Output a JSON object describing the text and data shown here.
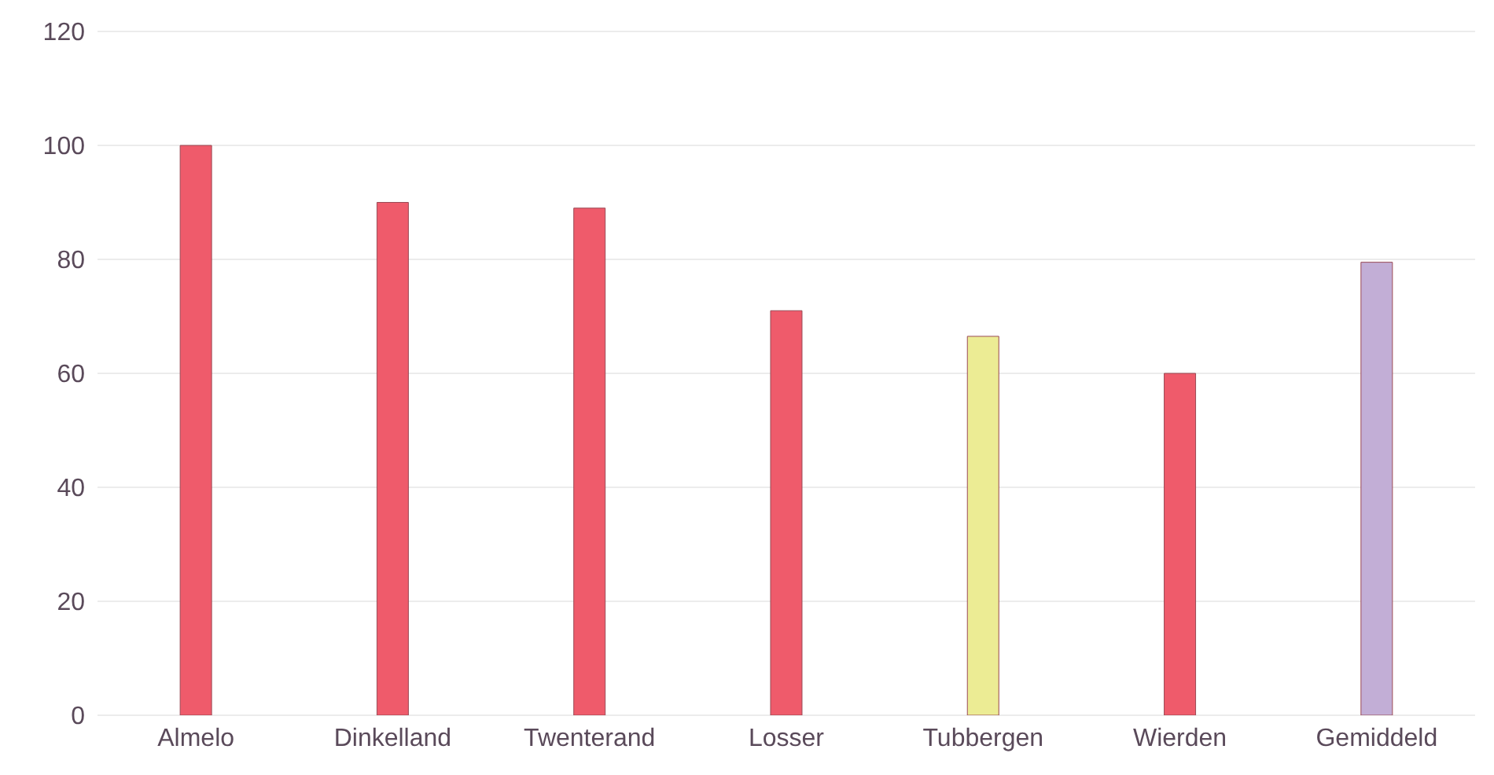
{
  "chart_data": {
    "type": "bar",
    "categories": [
      "Almelo",
      "Dinkelland",
      "Twenterand",
      "Losser",
      "Tubbergen",
      "Wierden",
      "Gemiddeld"
    ],
    "values": [
      100,
      90,
      89,
      71,
      66.5,
      60,
      79.5
    ],
    "colors": [
      "#ef5b6b",
      "#ef5b6b",
      "#ef5b6b",
      "#ef5b6b",
      "#ecec94",
      "#ef5b6b",
      "#c2aed6"
    ],
    "ylim": [
      0,
      120
    ],
    "yticks": [
      0,
      20,
      40,
      60,
      80,
      100,
      120
    ],
    "grid": "y"
  }
}
